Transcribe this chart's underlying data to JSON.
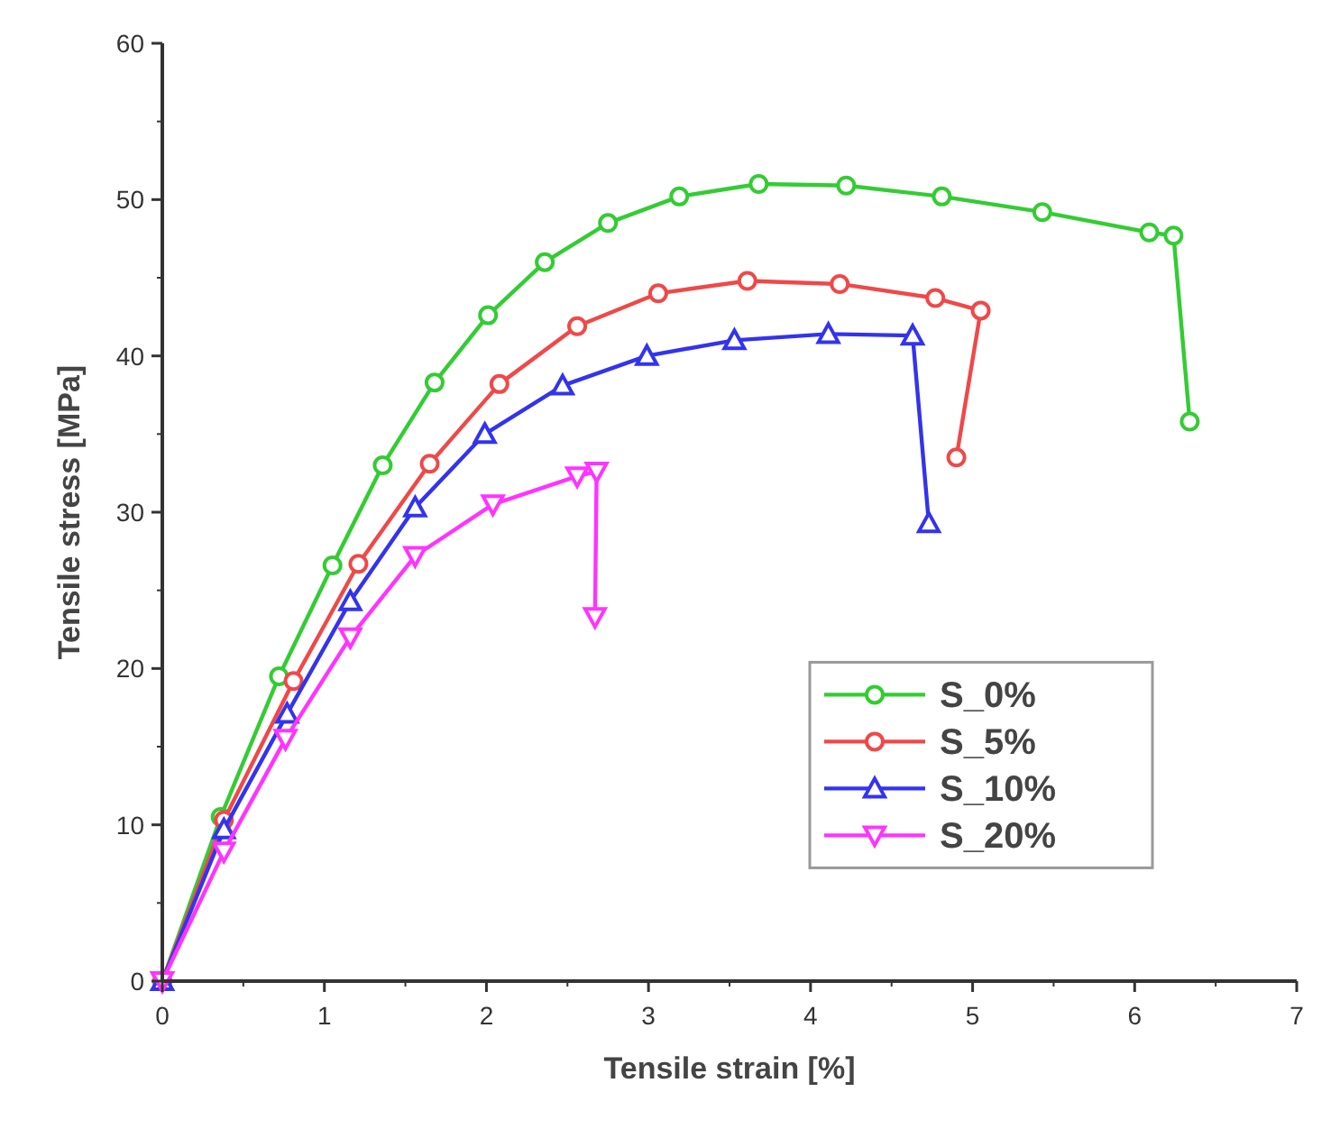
{
  "chart_data": {
    "type": "line",
    "xlabel": "Tensile strain [%]",
    "ylabel": "Tensile stress [MPa]",
    "xlim": [
      0,
      7
    ],
    "xticks": [
      0,
      1,
      2,
      3,
      4,
      5,
      6,
      7
    ],
    "ylim": [
      0,
      60
    ],
    "yticks": [
      0,
      10,
      20,
      30,
      40,
      50,
      60
    ],
    "grid": false,
    "legend": "right",
    "line_style": "solid",
    "series": [
      {
        "name": "S_0%",
        "color": "#33cc33",
        "marker": "circle",
        "x": [
          0,
          0.36,
          0.72,
          1.05,
          1.36,
          1.68,
          2.01,
          2.36,
          2.75,
          3.19,
          3.68,
          4.22,
          4.81,
          5.43,
          6.09,
          6.24,
          6.34
        ],
        "values": [
          0,
          10.5,
          19.5,
          26.6,
          33.0,
          38.3,
          42.6,
          46.0,
          48.5,
          50.2,
          51.0,
          50.9,
          50.2,
          49.2,
          47.9,
          47.7,
          35.8
        ]
      },
      {
        "name": "S_5%",
        "color": "#f04848",
        "marker": "circle",
        "x": [
          0,
          0.38,
          0.81,
          1.21,
          1.65,
          2.08,
          2.56,
          3.06,
          3.61,
          4.18,
          4.77,
          5.05,
          4.9
        ],
        "values": [
          0,
          10.3,
          19.2,
          26.7,
          33.1,
          38.2,
          41.9,
          44.0,
          44.8,
          44.6,
          43.7,
          42.9,
          33.5
        ]
      },
      {
        "name": "S_10%",
        "color": "#3333ee",
        "marker": "triangle",
        "x": [
          0,
          0.38,
          0.77,
          1.16,
          1.56,
          1.99,
          2.47,
          2.99,
          3.53,
          4.11,
          4.63,
          4.73
        ],
        "values": [
          0,
          9.7,
          17.1,
          24.3,
          30.3,
          35.0,
          38.1,
          40.0,
          41.0,
          41.4,
          41.3,
          29.3
        ]
      },
      {
        "name": "S_20%",
        "color": "#ff33ff",
        "marker": "triangle-down",
        "x": [
          0,
          0.38,
          0.76,
          1.16,
          1.56,
          2.04,
          2.56,
          2.68,
          2.67
        ],
        "values": [
          0,
          8.3,
          15.5,
          22.0,
          27.2,
          30.5,
          32.3,
          32.6,
          23.3
        ]
      }
    ]
  }
}
